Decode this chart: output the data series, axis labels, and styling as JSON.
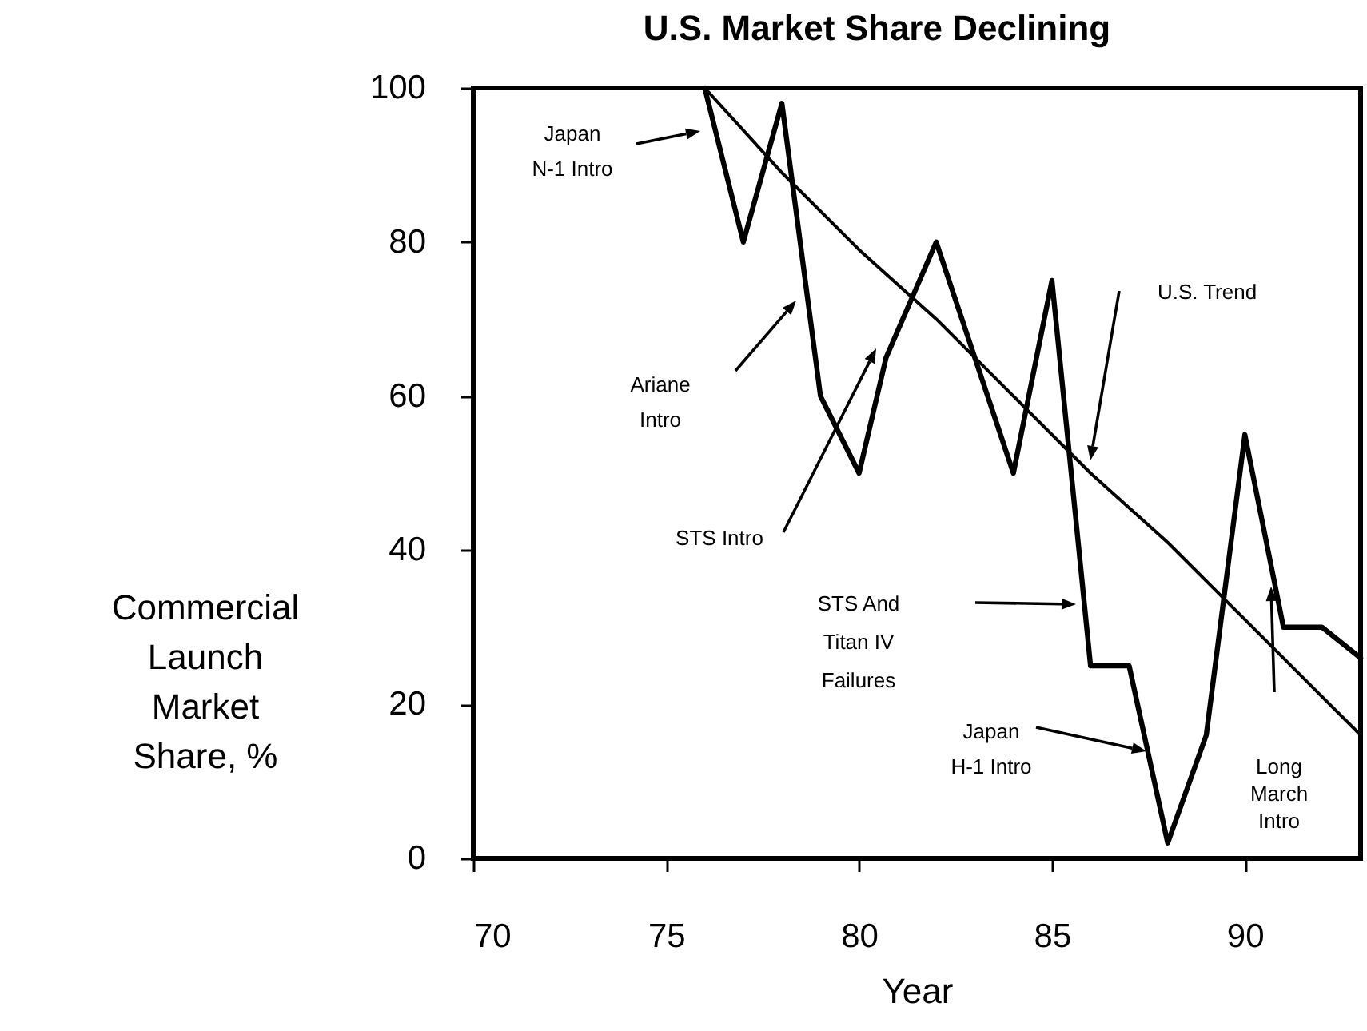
{
  "chart_data": {
    "type": "line",
    "title": "U.S. Market Share Declining",
    "xlabel": "Year",
    "ylabel": "Commercial\nLaunch\nMarket\nShare, %",
    "series": [
      {
        "color": "#000000",
        "x": [
          76,
          77,
          78,
          79,
          80,
          80.7,
          82,
          83,
          84,
          85,
          86,
          87,
          88,
          89,
          90,
          91,
          92,
          93
        ],
        "values": [
          100,
          80,
          98,
          60,
          50,
          65,
          80,
          65,
          50,
          75,
          25,
          25,
          2,
          16,
          55,
          30,
          30,
          26
        ]
      },
      {
        "color": "#000000",
        "x": [
          76,
          78,
          80,
          82,
          84,
          86,
          88,
          90,
          92,
          93
        ],
        "values": [
          100,
          89,
          79,
          70,
          60,
          50,
          41,
          31,
          21,
          16
        ]
      }
    ],
    "annotations": [
      "Japan\nN-1 Intro",
      "Ariane\nIntro",
      "STS Intro",
      "STS And\nTitan IV\nFailures",
      "Japan\nH-1 Intro",
      "U.S. Trend",
      "Long\nMarch\nIntro"
    ],
    "xlim": [
      70,
      93
    ],
    "xticks": [
      70,
      75,
      80,
      85,
      90
    ],
    "ylim": [
      0,
      100
    ],
    "yticks": [
      0,
      20,
      40,
      60,
      80,
      100
    ],
    "grid": false,
    "marker": "none",
    "line_style": "solid"
  }
}
